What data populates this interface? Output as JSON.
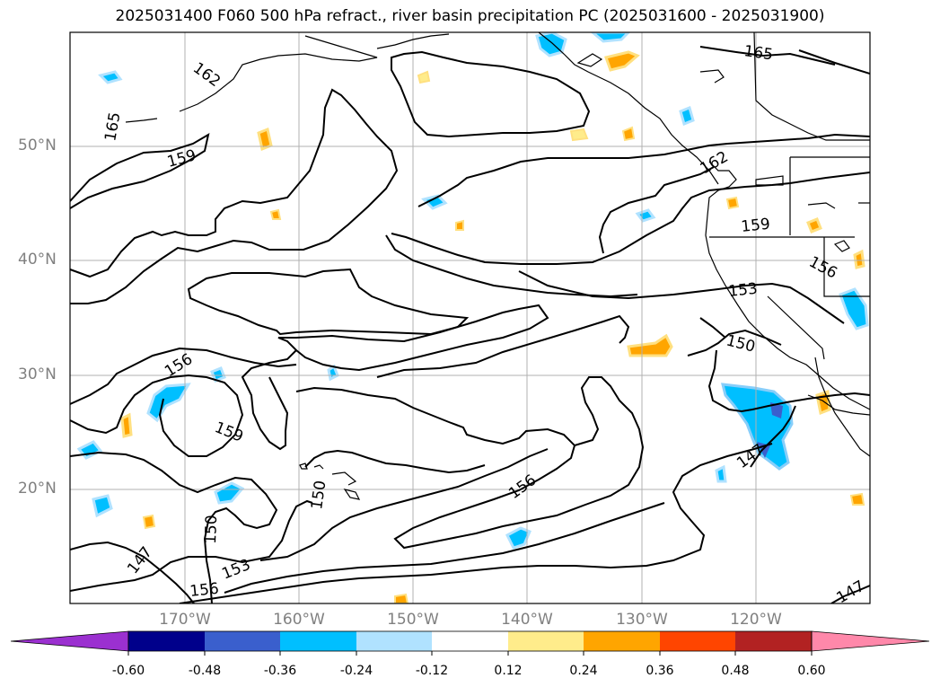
{
  "title": "2025031400 F060 500 hPa refract., river basin precipitation PC (2025031600 - 2025031900)",
  "lat_labels": [
    "50°N",
    "40°N",
    "30°N",
    "20°N"
  ],
  "lon_labels": [
    "170°W",
    "160°W",
    "150°W",
    "140°W",
    "130°W",
    "120°W"
  ],
  "colorbar": {
    "levels": [
      "-0.60",
      "-0.48",
      "-0.36",
      "-0.24",
      "-0.12",
      "0.12",
      "0.24",
      "0.36",
      "0.48",
      "0.60"
    ],
    "colors": [
      "#9b30d0",
      "#00008b",
      "#3a5fcd",
      "#00bfff",
      "#b0e2ff",
      "#ffffff",
      "#ffec8b",
      "#ffa500",
      "#ff4500",
      "#b22222",
      "#ff88aa"
    ]
  },
  "contour_labels": [
    "162",
    "165",
    "165",
    "159",
    "159",
    "162",
    "156",
    "153",
    "150",
    "156",
    "159",
    "150",
    "150",
    "147",
    "153",
    "156",
    "156",
    "147",
    "147"
  ],
  "colors": {
    "contour": "#000000",
    "grid": "#b0b0b0",
    "coast": "#000000",
    "axis_text": "#808080"
  }
}
